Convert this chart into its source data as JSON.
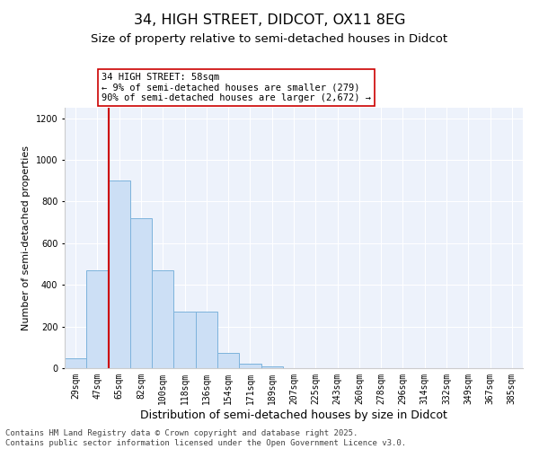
{
  "title_line1": "34, HIGH STREET, DIDCOT, OX11 8EG",
  "title_line2": "Size of property relative to semi-detached houses in Didcot",
  "xlabel": "Distribution of semi-detached houses by size in Didcot",
  "ylabel": "Number of semi-detached properties",
  "categories": [
    "29sqm",
    "47sqm",
    "65sqm",
    "82sqm",
    "100sqm",
    "118sqm",
    "136sqm",
    "154sqm",
    "171sqm",
    "189sqm",
    "207sqm",
    "225sqm",
    "243sqm",
    "260sqm",
    "278sqm",
    "296sqm",
    "314sqm",
    "332sqm",
    "349sqm",
    "367sqm",
    "385sqm"
  ],
  "values": [
    47,
    470,
    900,
    720,
    470,
    270,
    270,
    75,
    20,
    10,
    0,
    0,
    0,
    0,
    0,
    0,
    0,
    0,
    0,
    0,
    0
  ],
  "bar_color": "#ccdff5",
  "bar_edge_color": "#7db3dc",
  "vline_x_pos": 1.5,
  "vline_color": "#cc0000",
  "annotation_text": "34 HIGH STREET: 58sqm\n← 9% of semi-detached houses are smaller (279)\n90% of semi-detached houses are larger (2,672) →",
  "ylim": [
    0,
    1250
  ],
  "yticks": [
    0,
    200,
    400,
    600,
    800,
    1000,
    1200
  ],
  "background_color": "#edf2fb",
  "footer_text": "Contains HM Land Registry data © Crown copyright and database right 2025.\nContains public sector information licensed under the Open Government Licence v3.0.",
  "title_fontsize": 11.5,
  "subtitle_fontsize": 9.5,
  "xlabel_fontsize": 9,
  "ylabel_fontsize": 8,
  "tick_fontsize": 7,
  "footer_fontsize": 6.5,
  "annot_fontsize": 7.5
}
